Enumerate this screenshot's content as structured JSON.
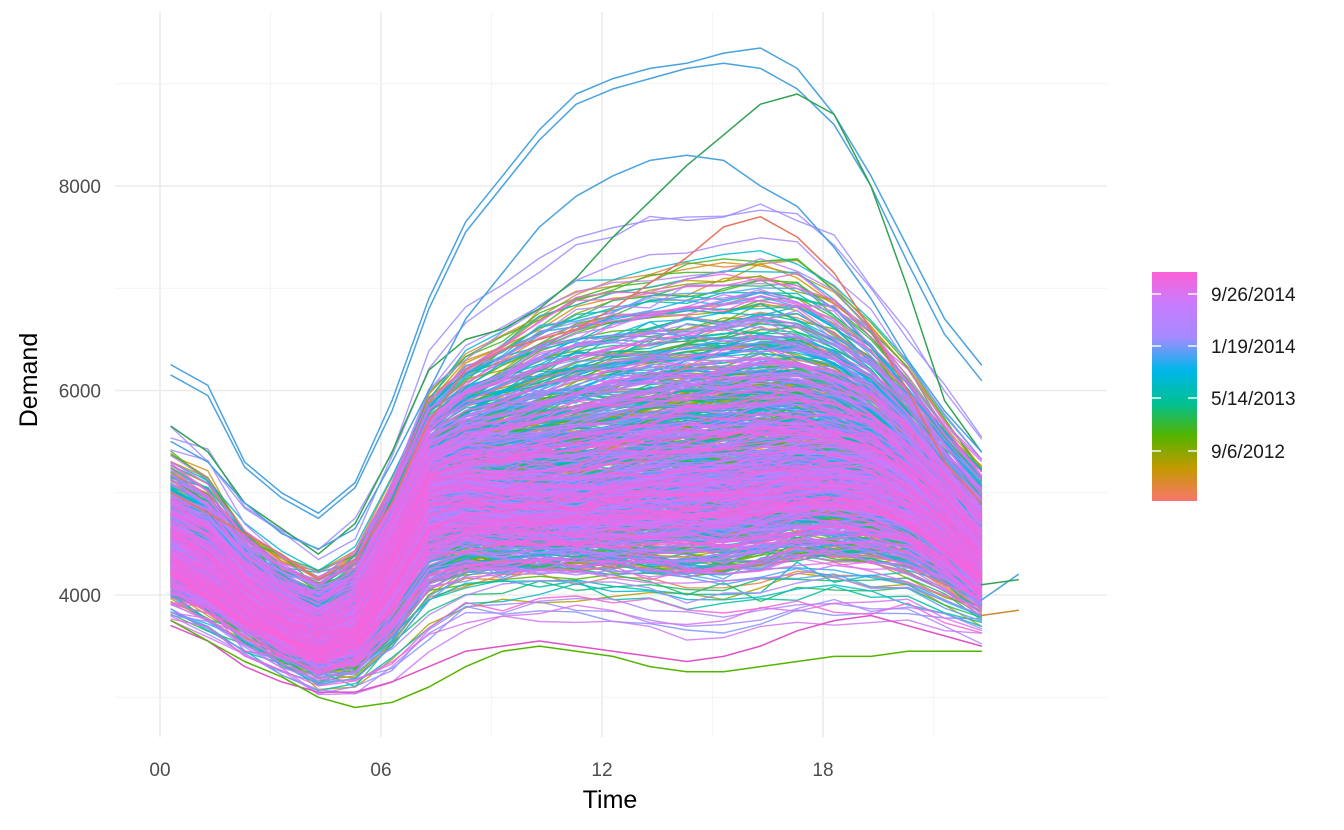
{
  "chart_data": {
    "type": "line",
    "title": "",
    "xlabel": "Time",
    "ylabel": "Demand",
    "x_unit": "hour of day",
    "x_range": [
      0,
      24
    ],
    "xlim": [
      0,
      24
    ],
    "ylim": [
      2650,
      9450
    ],
    "x_ticks": [
      "00",
      "06",
      "12",
      "18"
    ],
    "x_tick_values": [
      0,
      6,
      12,
      18
    ],
    "y_ticks": [
      "4000",
      "6000",
      "8000"
    ],
    "y_tick_values": [
      4000,
      6000,
      8000
    ],
    "grid": true,
    "legend": {
      "type": "colorbar",
      "placement": "right",
      "labels": [
        "9/26/2014",
        "1/19/2014",
        "5/14/2013",
        "9/6/2012"
      ],
      "gradient_colors": [
        "#f8766d",
        "#c49a00",
        "#53b400",
        "#00c094",
        "#00b6eb",
        "#a58aff",
        "#c77cff",
        "#fb61d7"
      ]
    },
    "series_count_estimate": 1000,
    "envelope": {
      "x": [
        0,
        1,
        2,
        3,
        4,
        5,
        6,
        7,
        8,
        9,
        10,
        11,
        12,
        13,
        14,
        15,
        16,
        17,
        18,
        19,
        20,
        21,
        22,
        23
      ],
      "upper": [
        6250,
        6050,
        5300,
        5000,
        4800,
        5100,
        5900,
        6900,
        7600,
        8100,
        8550,
        8900,
        9050,
        9150,
        9200,
        9300,
        9350,
        9150,
        8700,
        8100,
        7400,
        6700,
        6250,
        6050
      ],
      "lower": [
        3600,
        3500,
        3300,
        3150,
        2950,
        2900,
        2950,
        3150,
        3400,
        3450,
        3500,
        3500,
        3450,
        3350,
        3250,
        3250,
        3300,
        3400,
        3400,
        3400,
        3500,
        3450,
        3450,
        3800
      ],
      "typical": [
        4400,
        4200,
        3950,
        3700,
        3550,
        3700,
        4300,
        5000,
        5050,
        5000,
        5000,
        5000,
        5050,
        5100,
        5150,
        5150,
        5200,
        5250,
        5250,
        5200,
        5000,
        4700,
        4300,
        4200
      ]
    },
    "highlighted_series": [
      {
        "color": "#4aa3df",
        "values": [
          6250,
          6050,
          5300,
          5000,
          4800,
          5100,
          5900,
          6900,
          7650,
          8100,
          8550,
          8900,
          9050,
          9150,
          9200,
          9300,
          9350,
          9150,
          8700,
          8100,
          7400,
          6700,
          6250,
          null
        ]
      },
      {
        "color": "#4aa3df",
        "values": [
          6150,
          5950,
          5250,
          4950,
          4750,
          5050,
          5800,
          6800,
          7550,
          8000,
          8450,
          8800,
          8950,
          9050,
          9150,
          9200,
          9150,
          8950,
          8600,
          8000,
          7250,
          6550,
          6100,
          null
        ]
      },
      {
        "color": "#31a354",
        "values": [
          5650,
          5400,
          4900,
          4650,
          4400,
          4700,
          5400,
          6200,
          6500,
          6600,
          6800,
          7100,
          7500,
          7850,
          8200,
          8500,
          8800,
          8900,
          8700,
          8000,
          7000,
          5900,
          5400,
          null
        ]
      },
      {
        "color": "#4aa3df",
        "values": [
          5500,
          5300,
          4900,
          4600,
          4450,
          4650,
          5300,
          6000,
          6700,
          7150,
          7600,
          7900,
          8100,
          8250,
          8300,
          8250,
          8000,
          7800,
          7400,
          6900,
          6300,
          5800,
          5400,
          null
        ]
      },
      {
        "color": "#e8735f",
        "values": [
          5000,
          4800,
          4600,
          4400,
          4150,
          4350,
          4900,
          5700,
          6200,
          6400,
          6500,
          6600,
          6800,
          7050,
          7300,
          7600,
          7700,
          7500,
          7150,
          6600,
          6000,
          5300,
          4900,
          null
        ]
      },
      {
        "color": "#4aa3df",
        "values": [
          null,
          null,
          null,
          null,
          null,
          null,
          null,
          null,
          null,
          null,
          null,
          null,
          null,
          null,
          null,
          null,
          null,
          null,
          null,
          null,
          null,
          null,
          3950,
          4200
        ]
      },
      {
        "color": "#31a354",
        "values": [
          null,
          null,
          null,
          null,
          null,
          null,
          null,
          null,
          null,
          null,
          null,
          null,
          null,
          null,
          null,
          null,
          null,
          null,
          null,
          null,
          null,
          null,
          4100,
          4150
        ]
      },
      {
        "color": "#cc8a2a",
        "values": [
          null,
          null,
          null,
          null,
          null,
          null,
          null,
          null,
          null,
          null,
          null,
          null,
          null,
          null,
          null,
          null,
          null,
          null,
          null,
          null,
          null,
          null,
          3800,
          3850
        ]
      },
      {
        "color": "#e052c8",
        "values": [
          3700,
          3550,
          3300,
          3150,
          3050,
          3050,
          3150,
          3300,
          3450,
          3500,
          3550,
          3500,
          3450,
          3400,
          3350,
          3400,
          3500,
          3650,
          3750,
          3800,
          3700,
          3600,
          3500,
          null
        ]
      },
      {
        "color": "#53b400",
        "values": [
          3750,
          3550,
          3350,
          3200,
          3000,
          2900,
          2950,
          3100,
          3300,
          3450,
          3500,
          3450,
          3400,
          3300,
          3250,
          3250,
          3300,
          3350,
          3400,
          3400,
          3450,
          3450,
          3450,
          null
        ]
      }
    ]
  }
}
